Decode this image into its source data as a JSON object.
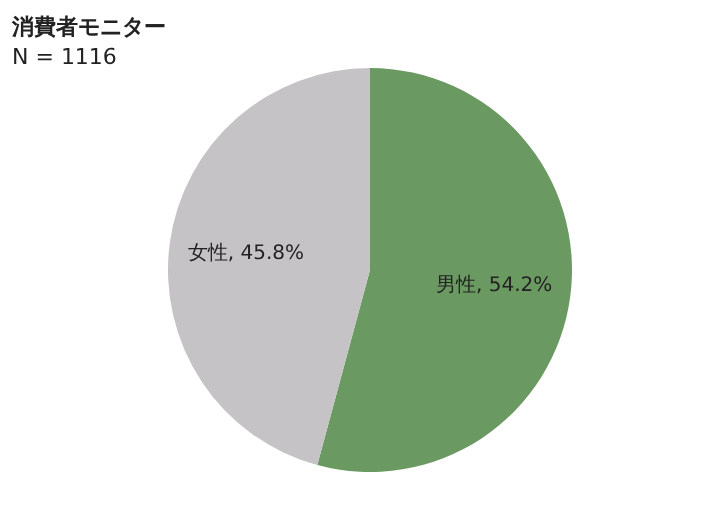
{
  "chart_data": {
    "type": "pie",
    "title": "消費者モニター",
    "subtitle": "N = 1116",
    "categories": [
      "男性",
      "女性"
    ],
    "values": [
      54.2,
      45.8
    ],
    "colors": [
      "#6a9a61",
      "#c5c3c5"
    ],
    "value_labels": [
      "54.2%",
      "45.8%"
    ],
    "legend": false
  }
}
